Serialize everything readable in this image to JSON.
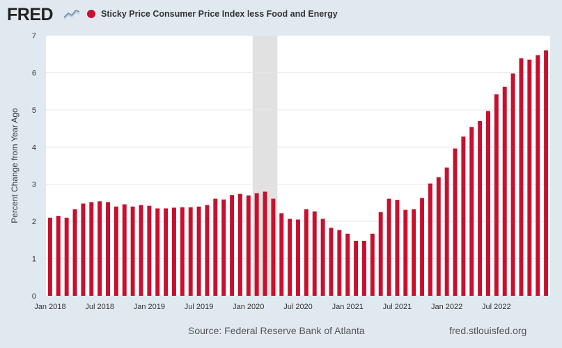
{
  "header": {
    "logo_text": "FRED"
  },
  "colors": {
    "series": "#c8102e",
    "recession": "#e1e1e1",
    "grid": "#e6e6e6"
  },
  "footer": {
    "source": "Source: Federal Reserve Bank of Atlanta",
    "site": "fred.stlouisfed.org"
  },
  "chart_data": {
    "type": "bar",
    "title": "",
    "legend": "top-left",
    "series": [
      {
        "name": "Sticky Price Consumer Price Index less Food and Energy",
        "values": [
          2.1,
          2.15,
          2.1,
          2.33,
          2.48,
          2.52,
          2.54,
          2.52,
          2.4,
          2.46,
          2.4,
          2.44,
          2.42,
          2.35,
          2.35,
          2.37,
          2.38,
          2.38,
          2.4,
          2.44,
          2.61,
          2.59,
          2.71,
          2.74,
          2.7,
          2.76,
          2.8,
          2.61,
          2.22,
          2.07,
          2.05,
          2.33,
          2.27,
          2.07,
          1.83,
          1.77,
          1.67,
          1.48,
          1.48,
          1.67,
          2.25,
          2.61,
          2.58,
          2.31,
          2.33,
          2.63,
          3.02,
          3.19,
          3.45,
          3.96,
          4.28,
          4.54,
          4.7,
          4.97,
          5.42,
          5.62,
          5.98,
          6.39,
          6.35,
          6.47,
          6.6
        ]
      }
    ],
    "x_start": "Jan 2018",
    "x_ticks": [
      "Jan 2018",
      "Jul 2018",
      "Jan 2019",
      "Jul 2019",
      "Jan 2020",
      "Jul 2020",
      "Jan 2021",
      "Jul 2021",
      "Jan 2022",
      "Jul 2022"
    ],
    "y_ticks": [
      "0",
      "1",
      "2",
      "3",
      "4",
      "5",
      "6",
      "7"
    ],
    "ylim": [
      0,
      7
    ],
    "ylabel": "Percent Change from Year Ago",
    "xlabel": "",
    "grid": true,
    "recession": {
      "start": "Feb 2020",
      "end": "Apr 2020"
    }
  }
}
